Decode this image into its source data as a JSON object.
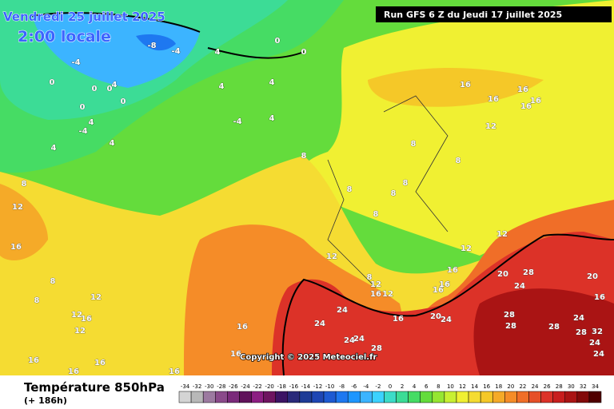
{
  "header": {
    "date": "Vendredi 25 juillet 2025",
    "time": "2:00 locale",
    "run": "Run GFS 6 Z du Jeudi 17 juillet 2025"
  },
  "map": {
    "copyright": "Copyright © 2025 Meteociel.fr",
    "contour_labels": [
      -8,
      -4,
      -4,
      4,
      4,
      4,
      4,
      -4,
      4,
      0,
      0,
      0,
      -4,
      4,
      8,
      12,
      16,
      8,
      8,
      12,
      12,
      16,
      12,
      16,
      16,
      16,
      16,
      16,
      16,
      8,
      8,
      8,
      8,
      12,
      8,
      12,
      16,
      12,
      16,
      24,
      24,
      24,
      24,
      28,
      20,
      24,
      16,
      16,
      16,
      12,
      12,
      8,
      12,
      16,
      16,
      16,
      16,
      16,
      8,
      8,
      20,
      28,
      24,
      20,
      16,
      28,
      28,
      28,
      24,
      28,
      32,
      24,
      24,
      0,
      0,
      4,
      0,
      0,
      4
    ]
  },
  "footer": {
    "title": "Température 850hPa",
    "lead": "(+ 186h)"
  },
  "legend": {
    "ticks": [
      -34,
      -32,
      -30,
      -28,
      -26,
      -24,
      -22,
      -20,
      -18,
      -16,
      -14,
      -12,
      -10,
      -8,
      -6,
      -4,
      -2,
      0,
      2,
      4,
      6,
      8,
      10,
      12,
      14,
      16,
      18,
      20,
      22,
      24,
      26,
      28,
      30,
      32,
      34
    ],
    "colors": [
      "#d4d4d4",
      "#b8b8b8",
      "#9c7aa0",
      "#8a4a8a",
      "#7a2a7a",
      "#60125a",
      "#8c1e82",
      "#6e1460",
      "#3c1464",
      "#2a2a7a",
      "#1e3c96",
      "#1e46b4",
      "#1e5ad2",
      "#1e78f0",
      "#1e96ff",
      "#3cb4ff",
      "#3cd2ff",
      "#3cdcc8",
      "#3cdc96",
      "#46dc64",
      "#64dc3c",
      "#96e632",
      "#c8f032",
      "#f0f032",
      "#f5dc32",
      "#f5c828",
      "#f5aa28",
      "#f58c28",
      "#f06e28",
      "#e65028",
      "#dc3228",
      "#c81e1e",
      "#aa1414",
      "#820a0a",
      "#500000"
    ]
  }
}
